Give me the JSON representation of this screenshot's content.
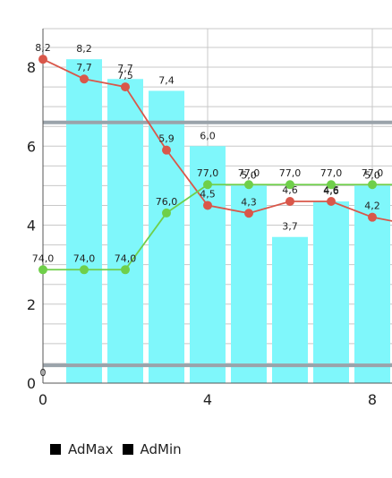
{
  "chart_data": {
    "type": "bar+line",
    "x": [
      0,
      1,
      2,
      3,
      4,
      5,
      6,
      7,
      8,
      9
    ],
    "bars": {
      "values": [
        0,
        8.2,
        7.7,
        7.4,
        6.0,
        5.0,
        3.7,
        4.6,
        5.0,
        0
      ],
      "labels": [
        "0",
        "8,2",
        "7,7",
        "7,4",
        "6,0",
        "5,0",
        "3,7",
        "4,6",
        "5,0",
        ""
      ],
      "color": "#7ff7fb"
    },
    "series": [
      {
        "name": "AdMax",
        "color": "#d9574a",
        "values": [
          8.2,
          7.7,
          7.5,
          5.9,
          4.5,
          4.3,
          4.6,
          4.6,
          4.2,
          4.0
        ],
        "labels": [
          "8,2",
          "7,7",
          "7,5",
          "5,9",
          "4,5",
          "4,3",
          "4,6",
          "4,6",
          "4,2",
          ""
        ]
      },
      {
        "name": "AdMin",
        "color": "#6fcf4a",
        "values": [
          74.0,
          74.0,
          74.0,
          76.0,
          77.0,
          77.0,
          77.0,
          77.0,
          77.0,
          77.0
        ],
        "labels": [
          "74,0",
          "74,0",
          "74,0",
          "76,0",
          "77,0",
          "77,0",
          "77,0",
          "77,0",
          "77,0",
          ""
        ]
      }
    ],
    "left_axis": {
      "min": 0,
      "max": 8.0,
      "ticks": [
        "0",
        "2",
        "4",
        "6",
        "8"
      ]
    },
    "right_axis_range": [
      70,
      82.5
    ],
    "x_axis": {
      "min": 0,
      "max": 8.8,
      "ticks": [
        "0",
        "4",
        "8"
      ]
    },
    "limit_lines": [
      6.6,
      0.45
    ],
    "grid": true,
    "legend": {
      "position": "bottom-left",
      "items": [
        "AdMax",
        "AdMin"
      ]
    },
    "title": "",
    "xlabel": "",
    "ylabel": ""
  }
}
